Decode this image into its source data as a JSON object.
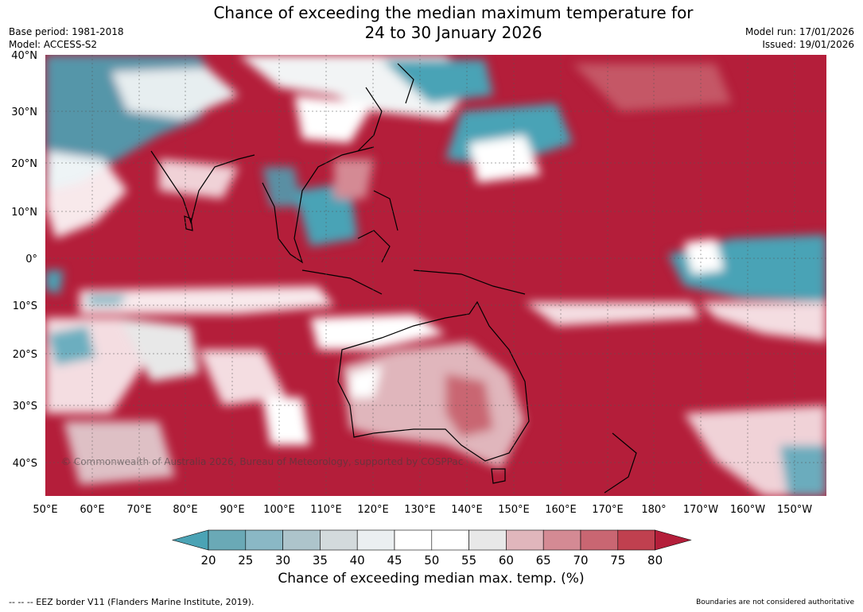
{
  "title_line1": "Chance of exceeding the median maximum temperature for",
  "title_line2": "24 to 30 January 2026",
  "meta_left": {
    "base_period": "Base period: 1981-2018",
    "model": "Model: ACCESS-S2"
  },
  "meta_right": {
    "model_run": "Model run: 17/01/2026",
    "issued": "Issued: 19/01/2026"
  },
  "map": {
    "lat_labels": [
      "40°N",
      "30°N",
      "20°N",
      "10°N",
      "0°",
      "10°S",
      "20°S",
      "30°S",
      "40°S"
    ],
    "lon_labels": [
      "50°E",
      "60°E",
      "70°E",
      "80°E",
      "90°E",
      "100°E",
      "110°E",
      "120°E",
      "130°E",
      "140°E",
      "150°E",
      "160°E",
      "170°E",
      "180°",
      "170°W",
      "160°W",
      "150°W"
    ],
    "copyright": "© Commonwealth of Australia 2026, Bureau of Meteorology, supported by COSPPac",
    "colors": {
      "high": "#b41e3a",
      "low": "#4aa3b6",
      "land_outline": "#000000"
    }
  },
  "colorbar": {
    "ticks": [
      "20",
      "25",
      "30",
      "35",
      "40",
      "45",
      "50",
      "55",
      "60",
      "65",
      "70",
      "75",
      "80"
    ],
    "colors": [
      "#4ba3b5",
      "#6aa9b6",
      "#8ab8c5",
      "#adc4cb",
      "#d3dadc",
      "#ebeff1",
      "#ffffff",
      "#ffffff",
      "#e8e8e8",
      "#e0b6bc",
      "#d48a94",
      "#c96672",
      "#c0404f",
      "#b41e3a"
    ],
    "title": "Chance of exceeding median max. temp. (%)"
  },
  "footer": {
    "eez_note": "--  --  -- EEZ border V11 (Flanders Marine Institute, 2019).",
    "boundary_note": "Boundaries are not considered authoritative"
  }
}
